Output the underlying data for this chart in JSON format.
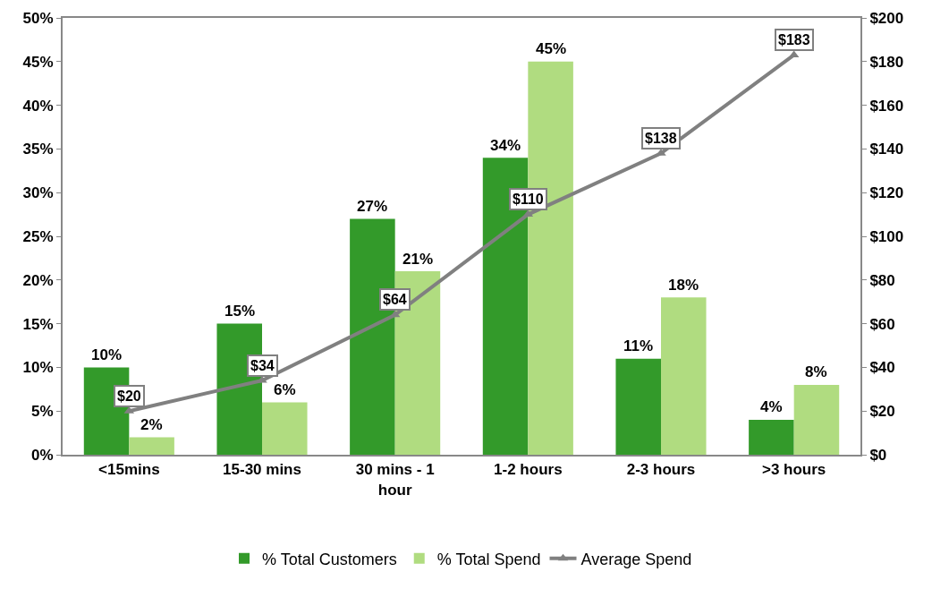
{
  "chart_data": {
    "type": "bar",
    "categories": [
      "<15mins",
      "15-30 mins",
      "30 mins - 1 hour",
      "1-2 hours",
      "2-3 hours",
      ">3 hours"
    ],
    "series": [
      {
        "name": "% Total Customers",
        "color": "#339a2a",
        "values": [
          10,
          15,
          27,
          34,
          11,
          4
        ],
        "value_labels": [
          "10%",
          "15%",
          "27%",
          "34%",
          "11%",
          "4%"
        ]
      },
      {
        "name": "% Total Spend",
        "color": "#b0dc80",
        "values": [
          2,
          6,
          21,
          45,
          18,
          8
        ],
        "value_labels": [
          "2%",
          "6%",
          "21%",
          "45%",
          "18%",
          "8%"
        ]
      },
      {
        "name": "Average Spend",
        "type": "line",
        "axis": "y2",
        "color": "#808080",
        "marker": "triangle",
        "values": [
          20,
          34,
          64,
          110,
          138,
          183
        ],
        "value_labels": [
          "$20",
          "$34",
          "$64",
          "$110",
          "$138",
          "$183"
        ]
      }
    ],
    "ylim": [
      0,
      50
    ],
    "yticks": [
      {
        "value": 0,
        "label": "0%"
      },
      {
        "value": 5,
        "label": "5%"
      },
      {
        "value": 10,
        "label": "10%"
      },
      {
        "value": 15,
        "label": "15%"
      },
      {
        "value": 20,
        "label": "20%"
      },
      {
        "value": 25,
        "label": "25%"
      },
      {
        "value": 30,
        "label": "30%"
      },
      {
        "value": 35,
        "label": "35%"
      },
      {
        "value": 40,
        "label": "40%"
      },
      {
        "value": 45,
        "label": "45%"
      },
      {
        "value": 50,
        "label": "50%"
      }
    ],
    "y2lim": [
      0,
      200
    ],
    "y2ticks": [
      {
        "value": 0,
        "label": "$0"
      },
      {
        "value": 20,
        "label": "$20"
      },
      {
        "value": 40,
        "label": "$40"
      },
      {
        "value": 60,
        "label": "$60"
      },
      {
        "value": 80,
        "label": "$80"
      },
      {
        "value": 100,
        "label": "$100"
      },
      {
        "value": 120,
        "label": "$120"
      },
      {
        "value": 140,
        "label": "$140"
      },
      {
        "value": 160,
        "label": "$160"
      },
      {
        "value": 180,
        "label": "$180"
      },
      {
        "value": 200,
        "label": "$200"
      }
    ],
    "legend": "bottom"
  }
}
